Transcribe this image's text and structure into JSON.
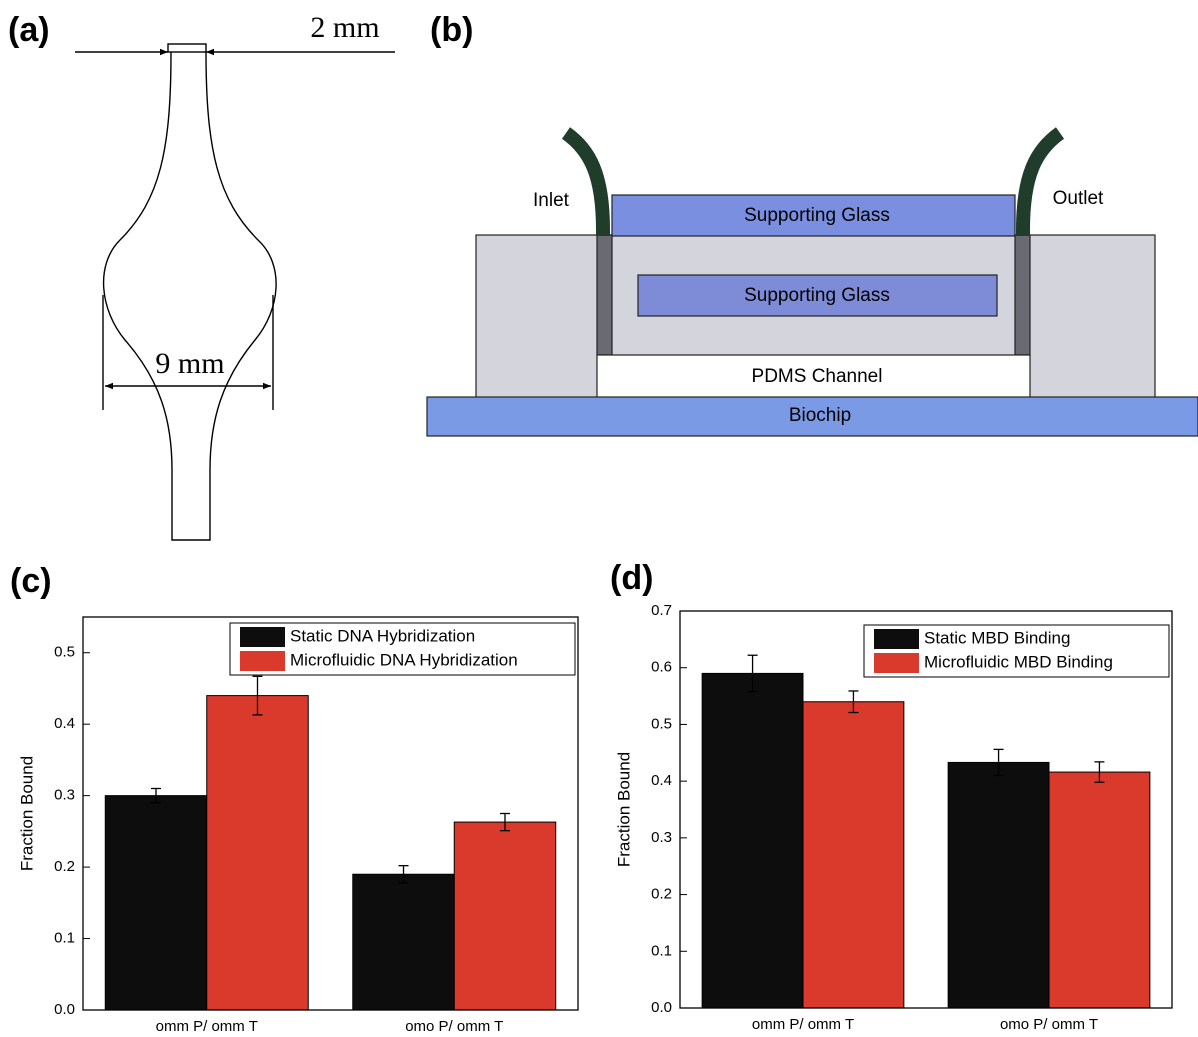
{
  "panels": {
    "a": {
      "label": "(a)",
      "top_width": "2 mm",
      "bulb_width": "9 mm"
    },
    "b": {
      "label": "(b)",
      "inlet": "Inlet",
      "outlet": "Outlet",
      "top_glass": "Supporting Glass",
      "inner_glass": "Supporting Glass",
      "channel": "PDMS Channel",
      "biochip": "Biochip"
    }
  },
  "chart_data": [
    {
      "type": "bar",
      "panel_label": "(c)",
      "ylabel": "Fraction Bound",
      "categories": [
        "omm P/ omm T",
        "omo P/ omm T"
      ],
      "series": [
        {
          "name": "Static DNA Hybridization",
          "color": "#0d0d0d",
          "values": [
            0.3,
            0.19
          ],
          "errors": [
            0.01,
            0.012
          ]
        },
        {
          "name": "Microfluidic DNA Hybridization",
          "color": "#d93a2b",
          "values": [
            0.44,
            0.263
          ],
          "errors": [
            0.027,
            0.012
          ]
        }
      ],
      "ylim": [
        0,
        0.55
      ],
      "yticks": [
        {
          "value": 0,
          "label": "0.0"
        },
        0.1,
        0.2,
        0.3,
        0.4,
        0.5
      ],
      "legend": "upper right"
    },
    {
      "type": "bar",
      "panel_label": "(d)",
      "ylabel": "Fraction Bound",
      "categories": [
        "omm P/ omm T",
        "omo P/ omm T"
      ],
      "series": [
        {
          "name": "Static MBD Binding",
          "color": "#0d0d0d",
          "values": [
            0.59,
            0.433
          ],
          "errors": [
            0.032,
            0.023
          ]
        },
        {
          "name": "Microfluidic MBD Binding",
          "color": "#d93a2b",
          "values": [
            0.54,
            0.416
          ],
          "errors": [
            0.019,
            0.018
          ]
        }
      ],
      "ylim": [
        0,
        0.7
      ],
      "yticks": [
        {
          "value": 0,
          "label": "0.0"
        },
        0.1,
        0.2,
        0.3,
        0.4,
        0.5,
        0.6,
        0.7
      ],
      "legend": "upper right"
    }
  ]
}
